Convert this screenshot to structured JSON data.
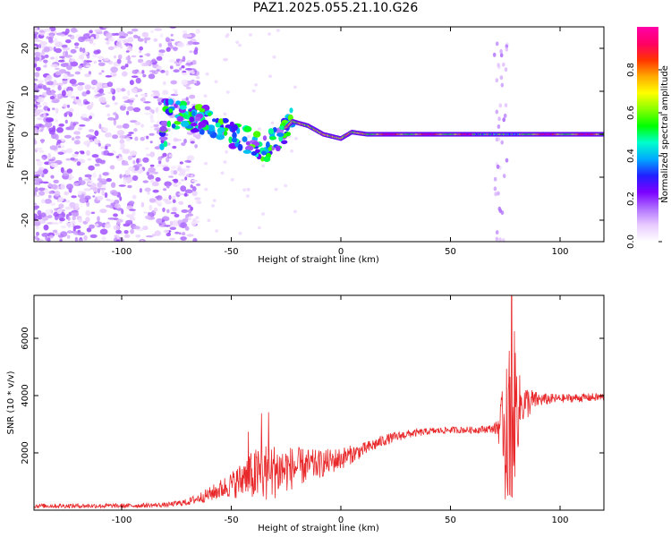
{
  "title": "PAZ1.2025.055.21.10.G26",
  "colors": {
    "snr_line": "#e8282a",
    "colormap": [
      "#ffffff",
      "#e8ccff",
      "#b070ff",
      "#7b00ff",
      "#2020ff",
      "#00aaff",
      "#00ffcc",
      "#00ff00",
      "#88ff00",
      "#ffff00",
      "#ffaa00",
      "#ff3300",
      "#ff0066",
      "#ff00aa"
    ]
  },
  "chart_data": [
    {
      "type": "heatmap",
      "title": "PAZ1.2025.055.21.10.G26",
      "xlabel": "Height of straight line (km)",
      "ylabel": "Frequency (Hz)",
      "xlim": [
        -140,
        120
      ],
      "ylim": [
        -25,
        25
      ],
      "xticks": [
        -100,
        -50,
        0,
        50,
        100
      ],
      "yticks": [
        -20,
        -10,
        0,
        10,
        20
      ],
      "colorbar": {
        "label": "Normalized spectral amplitude",
        "range": [
          0.0,
          1.0
        ],
        "ticks": [
          0.0,
          0.2,
          0.4,
          0.6,
          0.8
        ]
      },
      "ridge_track": [
        {
          "x": -80,
          "freq": 5
        },
        {
          "x": -70,
          "freq": 4
        },
        {
          "x": -60,
          "freq": 3
        },
        {
          "x": -50,
          "freq": 0
        },
        {
          "x": -40,
          "freq": -2
        },
        {
          "x": -35,
          "freq": -4
        },
        {
          "x": -28,
          "freq": 0
        },
        {
          "x": -22,
          "freq": 3
        },
        {
          "x": -15,
          "freq": 2
        },
        {
          "x": -8,
          "freq": 0
        },
        {
          "x": 0,
          "freq": -1
        },
        {
          "x": 5,
          "freq": 0.5
        },
        {
          "x": 12,
          "freq": 0
        },
        {
          "x": 120,
          "freq": 0
        }
      ],
      "grid": false,
      "legend": "colorbar right"
    },
    {
      "type": "line",
      "xlabel": "Height of straight line (km)",
      "ylabel": "SNR (10 * v/v)",
      "xlim": [
        -140,
        120
      ],
      "ylim": [
        0,
        7500
      ],
      "xticks": [
        -100,
        -50,
        0,
        50,
        100
      ],
      "yticks": [
        2000,
        4000,
        6000
      ],
      "series": [
        {
          "envelope": [
            {
              "x": -140,
              "mean": 150,
              "spread": 80
            },
            {
              "x": -100,
              "mean": 150,
              "spread": 80
            },
            {
              "x": -80,
              "mean": 180,
              "spread": 80
            },
            {
              "x": -70,
              "mean": 280,
              "spread": 120
            },
            {
              "x": -60,
              "mean": 550,
              "spread": 250
            },
            {
              "x": -50,
              "mean": 900,
              "spread": 450
            },
            {
              "x": -40,
              "mean": 1200,
              "spread": 900
            },
            {
              "x": -35,
              "mean": 1300,
              "spread": 1100
            },
            {
              "x": -20,
              "mean": 1500,
              "spread": 700
            },
            {
              "x": -10,
              "mean": 1600,
              "spread": 500
            },
            {
              "x": 0,
              "mean": 1800,
              "spread": 400
            },
            {
              "x": 10,
              "mean": 2100,
              "spread": 250
            },
            {
              "x": 20,
              "mean": 2450,
              "spread": 200
            },
            {
              "x": 30,
              "mean": 2650,
              "spread": 150
            },
            {
              "x": 40,
              "mean": 2750,
              "spread": 120
            },
            {
              "x": 50,
              "mean": 2800,
              "spread": 120
            },
            {
              "x": 60,
              "mean": 2800,
              "spread": 120
            },
            {
              "x": 70,
              "mean": 2850,
              "spread": 150
            },
            {
              "x": 73,
              "mean": 3000,
              "spread": 900
            },
            {
              "x": 76,
              "mean": 3000,
              "spread": 2200
            },
            {
              "x": 78,
              "mean": 3500,
              "spread": 3500
            },
            {
              "x": 82,
              "mean": 3700,
              "spread": 800
            },
            {
              "x": 90,
              "mean": 3850,
              "spread": 250
            },
            {
              "x": 100,
              "mean": 3900,
              "spread": 150
            },
            {
              "x": 120,
              "mean": 3950,
              "spread": 150
            }
          ],
          "peak": {
            "x": 78,
            "y": 7500
          }
        }
      ],
      "grid": false
    }
  ]
}
